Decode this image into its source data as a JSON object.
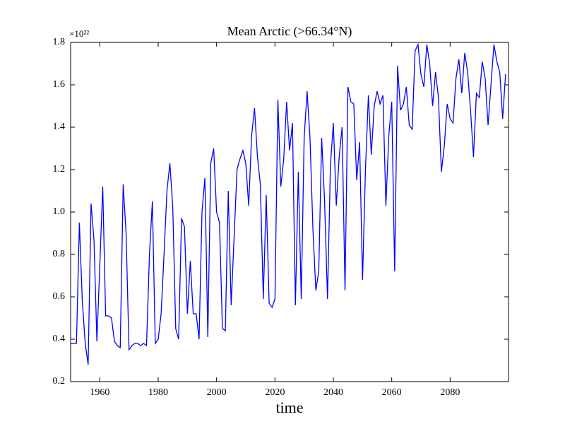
{
  "chart_data": {
    "type": "line",
    "title": "Mean Arctic (>66.34°N)",
    "x_label": "time",
    "y_scale_label": "×10²²",
    "x": [
      1950,
      1951,
      1952,
      1953,
      1954,
      1955,
      1956,
      1957,
      1958,
      1959,
      1960,
      1961,
      1962,
      1963,
      1964,
      1965,
      1966,
      1967,
      1968,
      1969,
      1970,
      1971,
      1972,
      1973,
      1974,
      1975,
      1976,
      1977,
      1978,
      1979,
      1980,
      1981,
      1982,
      1983,
      1984,
      1985,
      1986,
      1987,
      1988,
      1989,
      1990,
      1991,
      1992,
      1993,
      1994,
      1995,
      1996,
      1997,
      1998,
      1999,
      2000,
      2001,
      2002,
      2003,
      2004,
      2005,
      2006,
      2007,
      2008,
      2009,
      2010,
      2011,
      2012,
      2013,
      2014,
      2015,
      2016,
      2017,
      2018,
      2019,
      2020,
      2021,
      2022,
      2023,
      2024,
      2025,
      2026,
      2027,
      2028,
      2029,
      2030,
      2031,
      2032,
      2033,
      2034,
      2035,
      2036,
      2037,
      2038,
      2039,
      2040,
      2041,
      2042,
      2043,
      2044,
      2045,
      2046,
      2047,
      2048,
      2049,
      2050,
      2051,
      2052,
      2053,
      2054,
      2055,
      2056,
      2057,
      2058,
      2059,
      2060,
      2061,
      2062,
      2063,
      2064,
      2065,
      2066,
      2067,
      2068,
      2069,
      2070,
      2071,
      2072,
      2073,
      2074,
      2075,
      2076,
      2077,
      2078,
      2079,
      2080,
      2081,
      2082,
      2083,
      2084,
      2085,
      2086,
      2087,
      2088,
      2089,
      2090,
      2091,
      2092,
      2093,
      2094,
      2095,
      2096,
      2097,
      2098,
      2099
    ],
    "series": [
      {
        "color": "#0000ff",
        "values": [
          0.38,
          0.38,
          0.38,
          0.95,
          0.58,
          0.38,
          0.28,
          1.04,
          0.87,
          0.39,
          0.75,
          1.12,
          0.51,
          0.51,
          0.5,
          0.39,
          0.37,
          0.36,
          1.13,
          0.9,
          0.35,
          0.37,
          0.38,
          0.38,
          0.37,
          0.38,
          0.37,
          0.8,
          1.05,
          0.38,
          0.4,
          0.52,
          0.8,
          1.1,
          1.23,
          1.02,
          0.45,
          0.4,
          0.97,
          0.93,
          0.52,
          0.77,
          0.52,
          0.52,
          0.4,
          1.0,
          1.16,
          0.41,
          1.23,
          1.3,
          1.0,
          0.95,
          0.45,
          0.44,
          1.1,
          0.56,
          0.88,
          1.2,
          1.25,
          1.29,
          1.23,
          1.03,
          1.36,
          1.49,
          1.26,
          1.13,
          0.59,
          1.08,
          0.57,
          0.55,
          0.59,
          1.53,
          1.12,
          1.25,
          1.52,
          1.29,
          1.42,
          0.56,
          1.19,
          0.59,
          1.35,
          1.57,
          1.35,
          0.92,
          0.63,
          0.72,
          1.35,
          1.05,
          0.59,
          1.22,
          1.42,
          1.03,
          1.26,
          1.4,
          0.63,
          1.59,
          1.52,
          1.51,
          1.15,
          1.33,
          0.68,
          1.2,
          1.55,
          1.27,
          1.5,
          1.57,
          1.51,
          1.55,
          1.03,
          1.36,
          1.52,
          0.72,
          1.69,
          1.48,
          1.51,
          1.59,
          1.41,
          1.39,
          1.76,
          1.79,
          1.65,
          1.59,
          1.79,
          1.7,
          1.5,
          1.66,
          1.54,
          1.19,
          1.31,
          1.51,
          1.44,
          1.42,
          1.63,
          1.72,
          1.56,
          1.75,
          1.66,
          1.48,
          1.26,
          1.56,
          1.54,
          1.71,
          1.63,
          1.41,
          1.6,
          1.79,
          1.71,
          1.66,
          1.44,
          1.65
        ]
      }
    ],
    "xlim": [
      1950,
      2100
    ],
    "xticks": [
      1960,
      1980,
      2000,
      2020,
      2040,
      2060,
      2080
    ],
    "ylim": [
      0.2,
      1.8
    ],
    "yticks": [
      0.2,
      0.4,
      0.6,
      0.8,
      {
        "value": 1,
        "label": "1.0"
      },
      1.2,
      1.4,
      1.6,
      1.8
    ],
    "grid": false
  }
}
